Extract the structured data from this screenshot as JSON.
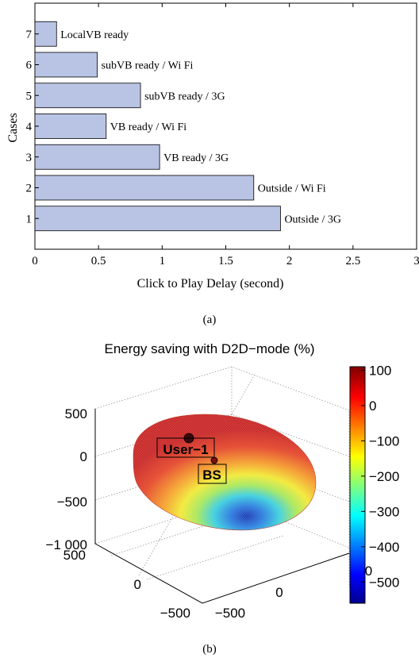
{
  "chart_data": [
    {
      "type": "bar",
      "orientation": "horizontal",
      "panel_label": "(a)",
      "title": "",
      "xlabel": "Click to Play Delay (second)",
      "ylabel": "Cases",
      "categories": [
        "1",
        "2",
        "3",
        "4",
        "5",
        "6",
        "7"
      ],
      "values": [
        1.93,
        1.72,
        0.98,
        0.56,
        0.83,
        0.49,
        0.17
      ],
      "bar_labels": [
        "Outside / 3G",
        "Outside / Wi Fi",
        "VB ready / 3G",
        "VB ready / Wi Fi",
        "subVB ready / 3G",
        "subVB ready / Wi Fi",
        "LocalVB ready"
      ],
      "xlim": [
        0,
        3
      ],
      "xticks": [
        "0",
        "0.5",
        "1",
        "1.5",
        "2",
        "2.5",
        "3"
      ],
      "bar_color": "#b9c4e4",
      "grid": false
    },
    {
      "type": "surface3d",
      "panel_label": "(b)",
      "title": "Energy saving with D2D−mode (%)",
      "zticks": [
        "500",
        "0",
        "−500",
        "−1 000"
      ],
      "yticks": [
        "500",
        "0",
        "−500"
      ],
      "xticks": [
        "−500",
        "0",
        "500"
      ],
      "colorbar": {
        "ticks": [
          "100",
          "0",
          "−100",
          "−200",
          "−300",
          "−400",
          "−500"
        ],
        "range": [
          -560,
          110
        ],
        "colormap": "jet"
      },
      "annotations": [
        "User−1",
        "BS"
      ],
      "grid": true
    }
  ]
}
